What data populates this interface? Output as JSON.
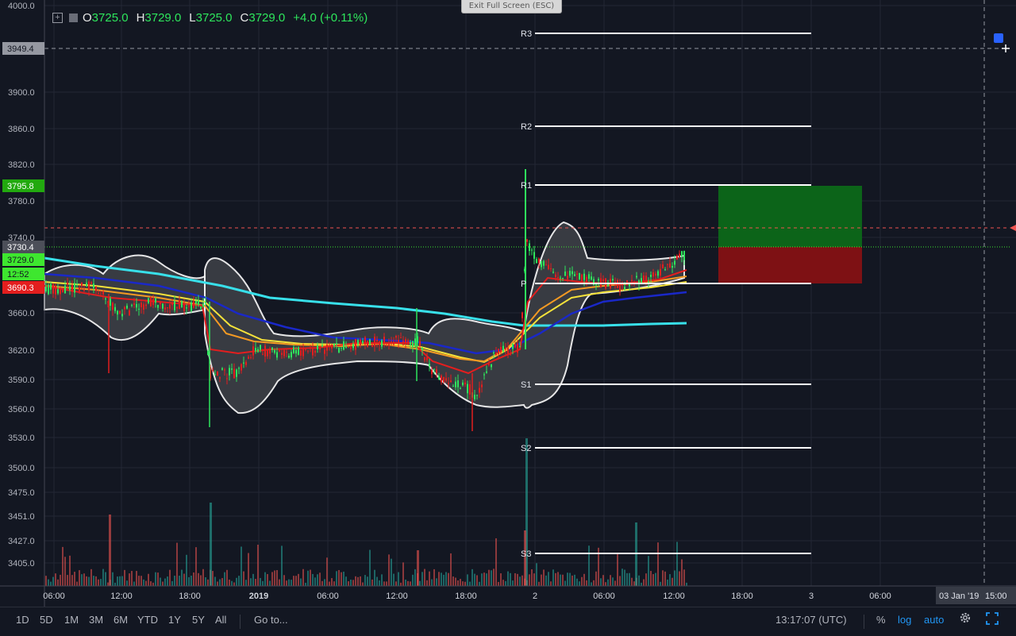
{
  "window": {
    "exit_fullscreen_label": "Exit Full Screen (ESC)"
  },
  "legend": {
    "o_key": "O",
    "o_val": "3725.0",
    "h_key": "H",
    "h_val": "3729.0",
    "l_key": "L",
    "l_val": "3725.0",
    "c_key": "C",
    "c_val": "3729.0",
    "change": "+4.0 (+0.11%)"
  },
  "price_axis": {
    "ticks": [
      "4000.0",
      "3900.0",
      "3860.0",
      "3820.0",
      "3780.0",
      "3740.0",
      "3660.0",
      "3620.0",
      "3590.0",
      "3560.0",
      "3530.0",
      "3500.0",
      "3475.0",
      "3451.0",
      "3427.0",
      "3405.0"
    ],
    "labels": [
      {
        "text": "3949.4",
        "color": "#9598a1",
        "text_color": "#131722"
      },
      {
        "text": "3795.8",
        "color": "#22a90f",
        "text_color": "#ffffff"
      },
      {
        "text": "3730.4",
        "color": "#4c4f59",
        "text_color": "#ffffff"
      },
      {
        "text": "3729.0",
        "color": "#3ee72f",
        "text_color": "#131722"
      },
      {
        "text": "12:52",
        "color": "#3ee72f",
        "text_color": "#131722"
      },
      {
        "text": "3690.3",
        "color": "#e31e1e",
        "text_color": "#ffffff"
      }
    ]
  },
  "time_axis": {
    "ticks": [
      "06:00",
      "12:00",
      "18:00",
      "2019",
      "06:00",
      "12:00",
      "18:00",
      "2",
      "06:00",
      "12:00",
      "18:00",
      "3",
      "06:00"
    ],
    "cursor_date": "03 Jan '19",
    "cursor_time": "15:00"
  },
  "pivots": [
    "R3",
    "R2",
    "R1",
    "P",
    "S1",
    "S2",
    "S3"
  ],
  "bottom": {
    "ranges": [
      "1D",
      "5D",
      "1M",
      "3M",
      "6M",
      "YTD",
      "1Y",
      "5Y",
      "All"
    ],
    "goto": "Go to...",
    "clock": "13:17:07 (UTC)",
    "percent": "%",
    "log": "log",
    "auto": "auto",
    "settings_icon": "gear-icon",
    "fullscreen_icon": "fullscreen-icon"
  },
  "colors": {
    "background": "#131722",
    "up": "#2ee65c",
    "down": "#e31e1e",
    "accent": "#2196f3",
    "ma_cyan": "#38e0ea",
    "ma_blue": "#1a28c8",
    "ma_yellow": "#f5e23a",
    "ma_orange": "#f59a23"
  },
  "chart_data": {
    "type": "candlestick",
    "price_range": [
      3390,
      4000
    ],
    "last_price": 3729.0,
    "crosshair_price": 3949.4,
    "pivots": {
      "R3": 3984,
      "R2": 3862,
      "R1": 3795.8,
      "P": 3690.3,
      "S1": 3580,
      "S2": 3515,
      "S3": 3410
    },
    "position": {
      "entry": 3730.4,
      "target": 3795.8,
      "stop": 3690.3
    }
  }
}
